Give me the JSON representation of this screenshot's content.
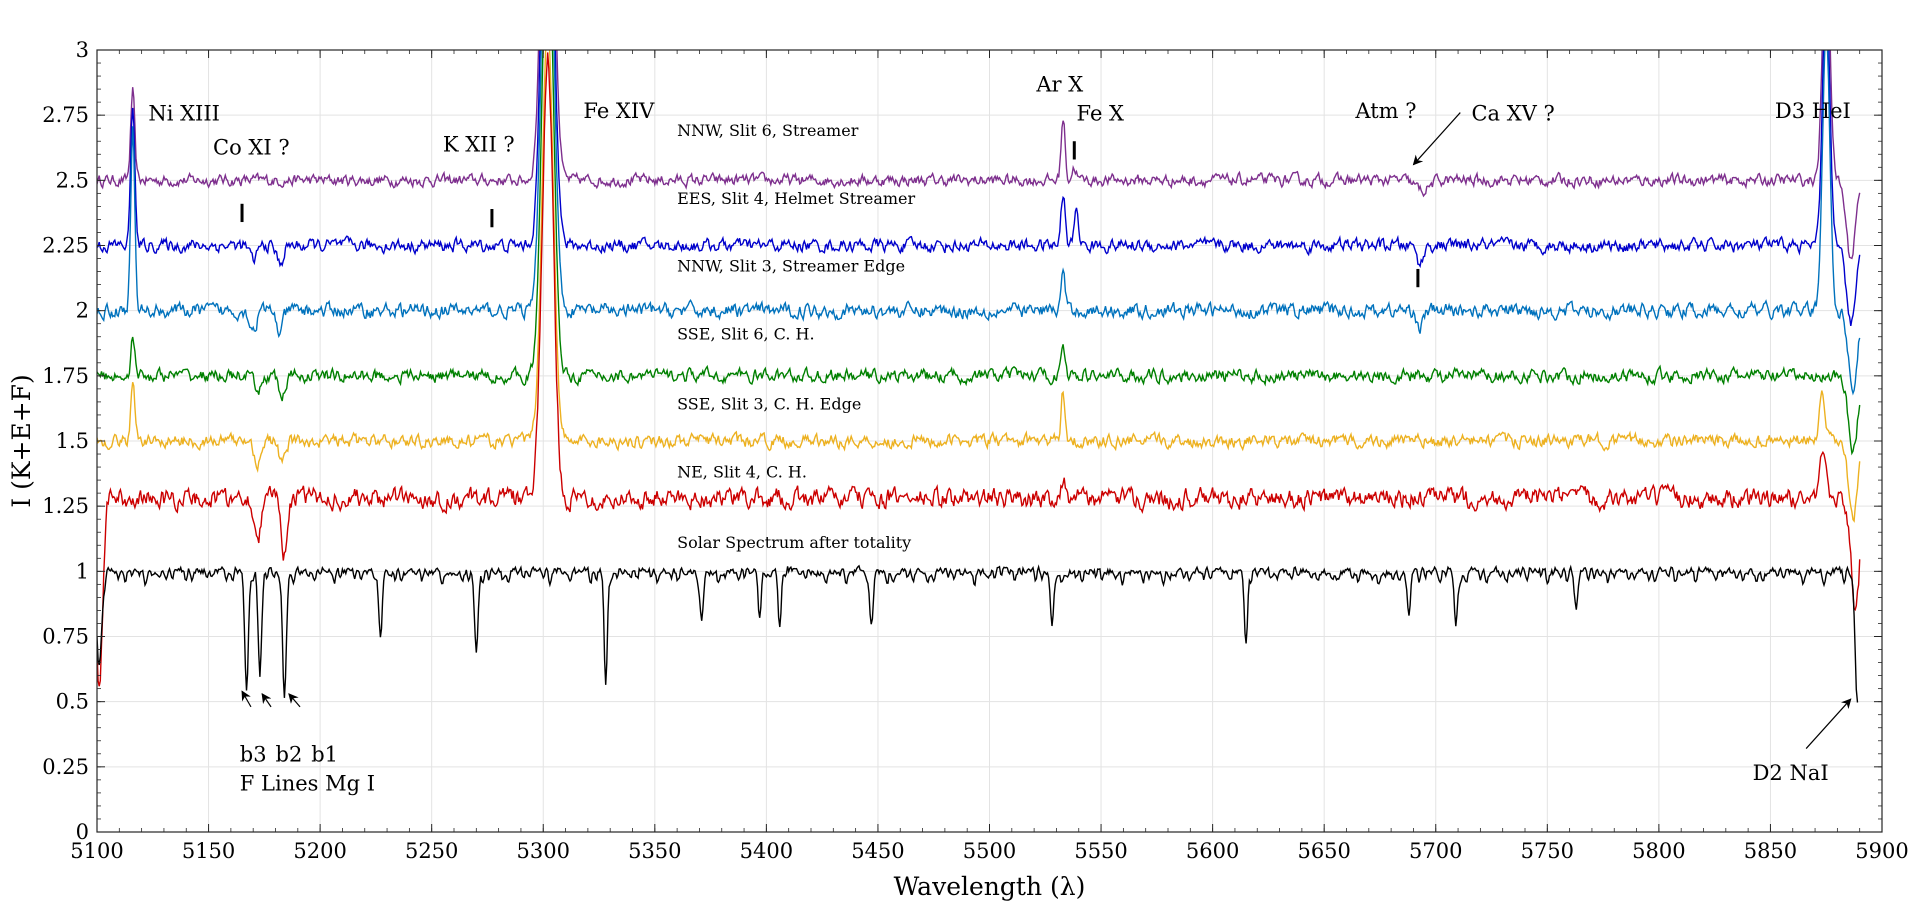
{
  "chart_data": {
    "type": "line",
    "xlabel": "Wavelength (λ)",
    "ylabel": "I (K+E+F)",
    "xlim": [
      5100,
      5900
    ],
    "ylim": [
      0,
      3
    ],
    "x_ticks": [
      "5100",
      "5150",
      "5200",
      "5250",
      "5300",
      "5350",
      "5400",
      "5450",
      "5500",
      "5550",
      "5600",
      "5650",
      "5700",
      "5750",
      "5800",
      "5850",
      "5900"
    ],
    "y_ticks": [
      "0",
      "0.25",
      "0.5",
      "0.75",
      "1",
      "1.25",
      "1.5",
      "1.75",
      "2",
      "2.25",
      "2.5",
      "2.75",
      "3"
    ],
    "grid": true,
    "legend": "none",
    "series": [
      {
        "name": "NNW, Slit 6, Streamer",
        "color": "#7e2f8e",
        "baseline": 2.5,
        "noise": 0.018,
        "end": 5890,
        "features": [
          [
            5116,
            0.34,
            0.9
          ],
          [
            5302,
            2.0,
            2.5
          ],
          [
            5533,
            0.24,
            0.9
          ],
          [
            5538,
            0.05,
            1.0
          ],
          [
            5694,
            -0.04,
            3.0
          ],
          [
            5875,
            1.0,
            1.6
          ],
          [
            5886,
            -0.3,
            2.0
          ]
        ]
      },
      {
        "name": "EES, Slit 4, Helmet Streamer",
        "color": "#0000cc",
        "baseline": 2.25,
        "noise": 0.02,
        "end": 5890,
        "features": [
          [
            5116,
            0.55,
            0.9
          ],
          [
            5170,
            -0.06,
            1.5
          ],
          [
            5182,
            -0.07,
            1.5
          ],
          [
            5302,
            2.0,
            2.5
          ],
          [
            5533,
            0.2,
            0.9
          ],
          [
            5539,
            0.15,
            0.9
          ],
          [
            5693,
            -0.07,
            1.5
          ],
          [
            5875,
            1.0,
            1.6
          ],
          [
            5886,
            -0.3,
            2.0
          ]
        ]
      },
      {
        "name": "NNW, Slit 3, Streamer Edge",
        "color": "#0072bd",
        "baseline": 2.0,
        "noise": 0.022,
        "end": 5890,
        "features": [
          [
            5116,
            0.7,
            0.9
          ],
          [
            5170,
            -0.07,
            1.5
          ],
          [
            5182,
            -0.08,
            1.5
          ],
          [
            5302,
            2.0,
            2.5
          ],
          [
            5533,
            0.15,
            0.9
          ],
          [
            5693,
            -0.06,
            1.5
          ],
          [
            5875,
            1.1,
            1.6
          ],
          [
            5887,
            -0.3,
            2.0
          ]
        ]
      },
      {
        "name": "SSE, Slit 6, C. H.",
        "color": "#008000",
        "baseline": 1.75,
        "noise": 0.02,
        "end": 5890,
        "features": [
          [
            5116,
            0.15,
            0.9
          ],
          [
            5172,
            -0.07,
            1.5
          ],
          [
            5183,
            -0.08,
            1.5
          ],
          [
            5302,
            1.8,
            2.5
          ],
          [
            5533,
            0.13,
            0.9
          ],
          [
            5887,
            -0.3,
            2.0
          ]
        ]
      },
      {
        "name": "SSE, Slit 3, C. H. Edge",
        "color": "#edb120",
        "baseline": 1.5,
        "noise": 0.02,
        "end": 5890,
        "features": [
          [
            5116,
            0.22,
            0.9
          ],
          [
            5172,
            -0.08,
            1.5
          ],
          [
            5183,
            -0.08,
            1.5
          ],
          [
            5302,
            1.6,
            2.5
          ],
          [
            5533,
            0.2,
            0.9
          ],
          [
            5873,
            0.17,
            1.2
          ],
          [
            5887,
            -0.3,
            2.0
          ]
        ]
      },
      {
        "name": "NE, Slit 4, C. H.",
        "color": "#cc0000",
        "baseline": 1.28,
        "noise": 0.03,
        "end": 5890,
        "features": [
          [
            5101,
            -0.7,
            1.5
          ],
          [
            5172,
            -0.16,
            1.3
          ],
          [
            5184,
            -0.2,
            1.3
          ],
          [
            5302,
            1.7,
            2.5
          ],
          [
            5533,
            0.08,
            1.0
          ],
          [
            5874,
            0.18,
            1.6
          ],
          [
            5888,
            -0.4,
            2.0
          ]
        ]
      },
      {
        "name": "Solar Spectrum after totality",
        "color": "#000000",
        "baseline": 1.0,
        "noise": 0.012,
        "end": 5889,
        "features": [
          [
            5101,
            -0.35,
            1.2
          ],
          [
            5167,
            -0.45,
            0.8
          ],
          [
            5173,
            -0.4,
            0.8
          ],
          [
            5184,
            -0.48,
            0.8
          ],
          [
            5227,
            -0.22,
            0.8
          ],
          [
            5270,
            -0.3,
            0.8
          ],
          [
            5328,
            -0.45,
            0.7
          ],
          [
            5371,
            -0.2,
            0.7
          ],
          [
            5397,
            -0.15,
            0.7
          ],
          [
            5406,
            -0.18,
            0.7
          ],
          [
            5447,
            -0.2,
            0.7
          ],
          [
            5528,
            -0.2,
            0.7
          ],
          [
            5615,
            -0.28,
            0.7
          ],
          [
            5688,
            -0.18,
            0.7
          ],
          [
            5709,
            -0.2,
            0.7
          ],
          [
            5763,
            -0.15,
            0.7
          ],
          [
            5889,
            -0.5,
            1.0
          ]
        ]
      }
    ],
    "series_labels": [
      {
        "text": "NNW, Slit 6, Streamer",
        "x": 5360,
        "y": 2.67
      },
      {
        "text": "EES, Slit 4, Helmet Streamer",
        "x": 5360,
        "y": 2.41
      },
      {
        "text": "NNW, Slit 3, Streamer Edge",
        "x": 5360,
        "y": 2.15
      },
      {
        "text": "SSE, Slit 6, C. H.",
        "x": 5360,
        "y": 1.89
      },
      {
        "text": "SSE, Slit 3, C. H. Edge",
        "x": 5360,
        "y": 1.62
      },
      {
        "text": "NE, Slit 4, C. H.",
        "x": 5360,
        "y": 1.36
      },
      {
        "text": "Solar Spectrum after totality",
        "x": 5360,
        "y": 1.09
      }
    ],
    "annotations": [
      {
        "text": "Ni XIII",
        "x": 5123,
        "y": 2.73
      },
      {
        "text": "Co XI ?",
        "x": 5152,
        "y": 2.6
      },
      {
        "text": "K XII ?",
        "x": 5255,
        "y": 2.61
      },
      {
        "text": "Fe XIV",
        "x": 5318,
        "y": 2.74
      },
      {
        "text": "Ar X",
        "x": 5521,
        "y": 2.84
      },
      {
        "text": "Fe X",
        "x": 5539,
        "y": 2.73
      },
      {
        "text": "Atm ?",
        "x": 5664,
        "y": 2.74
      },
      {
        "text": "Ca XV ?",
        "x": 5716,
        "y": 2.73
      },
      {
        "text": "D3 HeI",
        "x": 5852,
        "y": 2.74
      },
      {
        "text": "b3",
        "x": 5164,
        "y": 0.27
      },
      {
        "text": "b2",
        "x": 5180,
        "y": 0.27
      },
      {
        "text": "b1",
        "x": 5196,
        "y": 0.27
      },
      {
        "text": "F Lines Mg I",
        "x": 5164,
        "y": 0.16
      },
      {
        "text": "D2 NaI",
        "x": 5842,
        "y": 0.2
      }
    ],
    "line_markers": [
      {
        "x": 5165,
        "y0": 2.34,
        "y1": 2.41
      },
      {
        "x": 5277,
        "y0": 2.32,
        "y1": 2.39
      },
      {
        "x": 5538,
        "y0": 2.58,
        "y1": 2.65
      },
      {
        "x": 5692,
        "y0": 2.09,
        "y1": 2.16
      }
    ],
    "arrows": [
      {
        "from": [
          5711,
          2.76
        ],
        "to": [
          5690,
          2.56
        ]
      },
      {
        "from": [
          5169,
          0.48
        ],
        "to": [
          5165,
          0.54
        ]
      },
      {
        "from": [
          5178,
          0.48
        ],
        "to": [
          5174,
          0.53
        ]
      },
      {
        "from": [
          5191,
          0.48
        ],
        "to": [
          5186,
          0.53
        ]
      },
      {
        "from": [
          5866,
          0.32
        ],
        "to": [
          5886,
          0.51
        ]
      }
    ]
  }
}
